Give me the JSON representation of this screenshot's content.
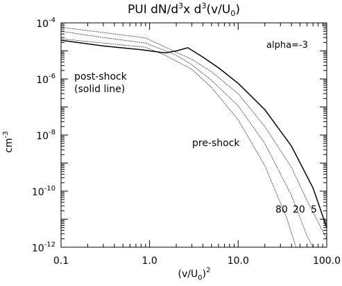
{
  "chart_data": {
    "type": "line",
    "title_parts": {
      "prefix": "PUI dN/d",
      "exp1": "3",
      "mid": "x d",
      "exp2": "3",
      "tail1": "(v/U",
      "sub": "0",
      "tail2": ")"
    },
    "xlabel_parts": {
      "a": "(v/U",
      "sub": "0",
      "b": ")",
      "sup": "2"
    },
    "ylabel_parts": {
      "base": "cm",
      "sup": "-3"
    },
    "xscale": "log",
    "yscale": "log",
    "xlim": [
      0.1,
      100
    ],
    "ylim": [
      1e-12,
      0.0001
    ],
    "x_ticks": [
      {
        "value": 0.1,
        "label": "0.1"
      },
      {
        "value": 1,
        "label": "1.0"
      },
      {
        "value": 10,
        "label": "10.0"
      },
      {
        "value": 100,
        "label": "100.0"
      }
    ],
    "y_ticks": [
      {
        "value": 0.0001,
        "base": "10",
        "exp": "-4"
      },
      {
        "value": 1e-06,
        "base": "10",
        "exp": "-6"
      },
      {
        "value": 1e-08,
        "base": "10",
        "exp": "-8"
      },
      {
        "value": 1e-10,
        "base": "10",
        "exp": "-10"
      },
      {
        "value": 1e-12,
        "base": "10",
        "exp": "-12"
      }
    ],
    "grid": false,
    "annotations": {
      "alpha": "alpha=-3",
      "post_shock_1": "post-shock",
      "post_shock_2": "(solid line)",
      "pre_shock": "pre-shock",
      "label_80": "80",
      "label_20": "20",
      "label_5": "5"
    },
    "series": [
      {
        "style": "solid",
        "points": [
          [
            0.1,
            2.4e-05
          ],
          [
            0.3,
            1.5e-05
          ],
          [
            0.8,
            1.1e-05
          ],
          [
            1.5,
            8.5e-06
          ],
          [
            2,
            1e-05
          ],
          [
            2.7,
            1.3e-05
          ],
          [
            4,
            6e-06
          ],
          [
            6,
            2.5e-06
          ],
          [
            10,
            7e-07
          ],
          [
            20,
            8e-08
          ],
          [
            40,
            4e-09
          ],
          [
            70,
            1.3e-10
          ],
          [
            100,
            5e-12
          ]
        ]
      },
      {
        "style": "dotted",
        "points": [
          [
            0.1,
            7e-05
          ],
          [
            0.3,
            4.5e-05
          ],
          [
            0.9,
            2.9e-05
          ],
          [
            2,
            9e-06
          ],
          [
            3,
            5e-06
          ],
          [
            5,
            1.8e-06
          ],
          [
            10,
            3e-07
          ],
          [
            20,
            2e-08
          ],
          [
            40,
            7e-10
          ],
          [
            60,
            4.5e-11
          ],
          [
            100,
            2e-12
          ]
        ]
      },
      {
        "style": "dotted",
        "points": [
          [
            0.1,
            5e-05
          ],
          [
            0.3,
            3e-05
          ],
          [
            0.9,
            1.9e-05
          ],
          [
            2,
            7e-06
          ],
          [
            3,
            3.2e-06
          ],
          [
            5,
            9e-07
          ],
          [
            10,
            1.1e-07
          ],
          [
            20,
            5e-09
          ],
          [
            40,
            7e-11
          ],
          [
            60,
            2.5e-12
          ],
          [
            70,
            1e-12
          ]
        ]
      },
      {
        "style": "dotted",
        "points": [
          [
            0.1,
            2.7e-05
          ],
          [
            0.3,
            1.9e-05
          ],
          [
            0.9,
            1.35e-05
          ],
          [
            1.5,
            7e-06
          ],
          [
            3,
            2.2e-06
          ],
          [
            5,
            5e-07
          ],
          [
            10,
            3.5e-08
          ],
          [
            20,
            8e-10
          ],
          [
            35,
            1.2e-11
          ],
          [
            45,
            1e-12
          ]
        ]
      }
    ]
  }
}
